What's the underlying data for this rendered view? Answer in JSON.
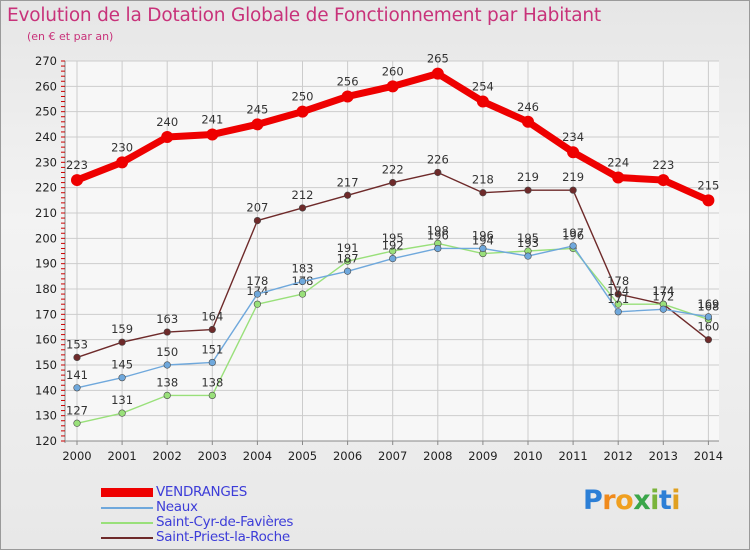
{
  "header": {
    "title": "Evolution de la Dotation Globale de Fonctionnement par Habitant",
    "subtitle": "(en € et par an)"
  },
  "chart_data": {
    "type": "line",
    "title": "Evolution de la Dotation Globale de Fonctionnement par Habitant",
    "subtitle": "(en € et par an)",
    "xlabel": "",
    "ylabel": "",
    "x": [
      "2000",
      "2001",
      "2002",
      "2003",
      "2004",
      "2005",
      "2006",
      "2007",
      "2008",
      "2009",
      "2010",
      "2011",
      "2012",
      "2013",
      "2014"
    ],
    "ylim": [
      120,
      270
    ],
    "yticks": [
      120,
      130,
      140,
      150,
      160,
      170,
      180,
      190,
      200,
      210,
      220,
      230,
      240,
      250,
      260,
      270
    ],
    "grid": true,
    "legend_position": "bottom-left",
    "series": [
      {
        "name": "VENDRANGES",
        "color": "#ee0000",
        "values": [
          223,
          230,
          240,
          241,
          245,
          250,
          256,
          260,
          265,
          254,
          246,
          234,
          224,
          223,
          215
        ]
      },
      {
        "name": "Neaux",
        "color": "#6fa8dc",
        "values": [
          141,
          145,
          150,
          151,
          178,
          183,
          187,
          192,
          196,
          196,
          193,
          197,
          171,
          172,
          169
        ]
      },
      {
        "name": "Saint-Cyr-de-Favières",
        "color": "#99e07a",
        "values": [
          127,
          131,
          138,
          138,
          174,
          178,
          191,
          195,
          198,
          194,
          195,
          196,
          174,
          174,
          168
        ]
      },
      {
        "name": "Saint-Priest-la-Roche",
        "color": "#6e2a2a",
        "values": [
          153,
          159,
          163,
          164,
          207,
          212,
          217,
          222,
          226,
          218,
          219,
          219,
          178,
          174,
          160
        ]
      }
    ]
  },
  "legend": {
    "items": [
      {
        "label": "VENDRANGES",
        "color": "#ee0000"
      },
      {
        "label": "Neaux",
        "color": "#6fa8dc"
      },
      {
        "label": "Saint-Cyr-de-Favières",
        "color": "#99e07a"
      },
      {
        "label": "Saint-Priest-la-Roche",
        "color": "#6e2a2a"
      }
    ]
  },
  "logo": {
    "letters": [
      "P",
      "r",
      "o",
      "x",
      "i",
      "t",
      "i"
    ],
    "colors": [
      "#2c7fd6",
      "#f08a1c",
      "#f0a020",
      "#3aa64a",
      "#7ab43a",
      "#2c7fd6",
      "#e0a020"
    ]
  }
}
